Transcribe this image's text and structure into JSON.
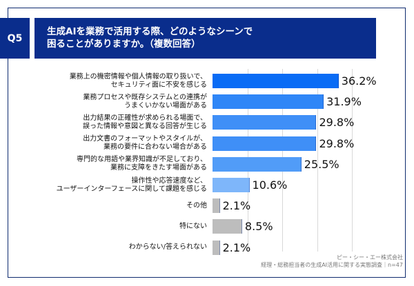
{
  "header": {
    "question_badge": "Q5",
    "title_line1": "生成AIを業務で活用する際、どのようなシーンで",
    "title_line2": "困ることがありますか。（複数回答）"
  },
  "footer": {
    "company": "ピー・シー・エー株式会社",
    "source": "経理・総務担当者の生成AI活用に関する実態調査｜n=47"
  },
  "chart_data": {
    "type": "bar",
    "orientation": "horizontal",
    "title": "生成AIを業務で活用する際、どのようなシーンで困ることがありますか。（複数回答）",
    "xlabel": "",
    "ylabel": "",
    "xlim": [
      0,
      40
    ],
    "grid": true,
    "unit": "%",
    "categories": [
      [
        "業務上の機密情報や個人情報の取り扱いで、",
        "セキュリティ面に不安を感じる"
      ],
      [
        "業務プロセスや既存システムとの連携が",
        "うまくいかない場面がある"
      ],
      [
        "出力結果の正確性が求められる場面で、",
        "誤った情報や意図と異なる回答が生じる"
      ],
      [
        "出力文書のフォーマットやスタイルが、",
        "業務の要件に合わない場合がある"
      ],
      [
        "専門的な用語や業界知識が不足しており、",
        "業務に支障をきたす場面がある"
      ],
      [
        "操作性や応答速度など、",
        "ユーザーインターフェースに関して課題を感じる"
      ],
      [
        "その他"
      ],
      [
        "特にない"
      ],
      [
        "わからない/答えられない"
      ]
    ],
    "values": [
      36.2,
      31.9,
      29.8,
      29.8,
      25.5,
      10.6,
      2.1,
      8.5,
      2.1
    ],
    "value_labels": [
      "36.2%",
      "31.9%",
      "29.8%",
      "29.8%",
      "25.5%",
      "10.6%",
      "2.1%",
      "8.5%",
      "2.1%"
    ],
    "colors": [
      "#0a6cf5",
      "#2f86f7",
      "#3f8ff7",
      "#3f8ff7",
      "#519cf8",
      "#7eb6fa",
      "#bdbdbd",
      "#bdbdbd",
      "#bdbdbd"
    ]
  }
}
